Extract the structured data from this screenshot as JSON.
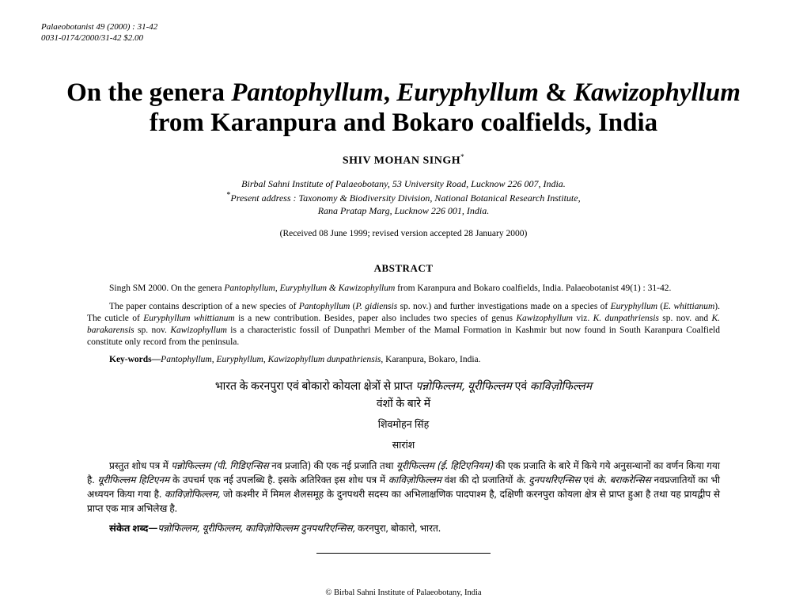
{
  "running_head": {
    "line1": "Palaeobotanist 49 (2000) : 31-42",
    "line2": "0031-0174/2000/31-42 $2.00"
  },
  "title_parts": {
    "a": "On the genera ",
    "b": "Pantophyllum",
    "c": ", ",
    "d": "Euryphyllum",
    "e": " & ",
    "f": "Kawizophyllum",
    "g": " from Karanpura and Bokaro coalfields, India"
  },
  "author": "SHIV MOHAN SINGH",
  "author_marker": "*",
  "affil": {
    "line1": "Birbal Sahni Institute of Palaeobotany, 53 University Road, Lucknow 226 007, India.",
    "line2_pre": "Present address : Taxonomy & Biodiversity Division, National Botanical Research Institute,",
    "line3": "Rana Pratap Marg, Lucknow 226 001, India."
  },
  "dates": "(Received 08 June 1999; revised version accepted 28 January 2000)",
  "abstract_head": "ABSTRACT",
  "abstract": {
    "p1_a": "Singh SM 2000. On the genera ",
    "p1_b": "Pantophyllum, Euryphyllum & Kawizophyllum",
    "p1_c": " from Karanpura and Bokaro coalfields, India. Palaeobotanist 49(1) : 31-42.",
    "p2_a": "The paper contains description of a new species of ",
    "p2_b": "Pantophyllum",
    "p2_c": " (",
    "p2_d": "P. gidiensis",
    "p2_e": " sp. nov.) and further investigations made on a species of ",
    "p2_f": "Euryphyllum",
    "p2_g": " (",
    "p2_h": "E. whittianum",
    "p2_i": "). The cuticle of ",
    "p2_j": "Euryphyllum whittianum",
    "p2_k": " is a new contribution. Besides, paper also includes two species of genus ",
    "p2_l": "Kawizophyllum",
    "p2_m": " viz. ",
    "p2_n": "K. dunpathriensis",
    "p2_o": " sp. nov. and ",
    "p2_p": "K. barakarensis",
    "p2_q": " sp. nov. ",
    "p2_r": "Kawizophyllum",
    "p2_s": " is a characteristic fossil of Dunpathri Member of the Mamal Formation in Kashmir but now found in South Karanpura Coalfield constitute only record from the peninsula."
  },
  "keywords": {
    "label": "Key-words—",
    "it": "Pantophyllum, Euryphyllum, Kawizophyllum dunpathriensis",
    "rest": ", Karanpura, Bokaro, India."
  },
  "hindi": {
    "title_a": "भारत के करनपुरा एवं बोकारो कोयला क्षेत्रों से प्राप्त ",
    "title_b": "पन्नोफिल्लम, यूरीफिल्लम",
    "title_c": " एवं ",
    "title_d": "काविज़ोफिल्लम",
    "title_e": " वंशों के बारे में",
    "author": "शिवमोहन सिंह",
    "section": "सारांश",
    "p1_a": "प्रस्तुत शोध पत्र में ",
    "p1_b": "पन्नोफिल्लम (पी. गिडिएन्सिस",
    "p1_c": " नव प्रजाति) की एक नई प्रजाति तथा ",
    "p1_d": "यूरीफिल्लम (ई. हिटिएनियम)",
    "p1_e": " की एक प्रजाति के बारे में किये गये अनुसन्धानों का वर्णन किया गया है. ",
    "p1_f": "यूरीफिल्लम हिटिएनम",
    "p1_g": " के उपचर्म एक नई उपलब्धि है. इसके अतिरिक्त इस शोध पत्र में ",
    "p1_h": "काविज़ोफिल्लम",
    "p1_i": " वंश की दो प्रजातियों ",
    "p1_j": "के. दुनपथरिएन्सिस",
    "p1_k": " एवं ",
    "p1_l": "के. बराकरेन्सिस",
    "p1_m": " नवप्रजातियों का भी अध्ययन किया गया है. ",
    "p1_n": "काविज़ोफिल्लम,",
    "p1_o": " जो कश्मीर में मिमल शैलसमूह के दुनपथरी सदस्य का अभिलाक्षणिक पादपाश्म है, दक्षिणी करनपुरा कोयला क्षेत्र से प्राप्त हुआ है तथा यह प्रायद्वीप से प्राप्त एक मात्र अभिलेख है.",
    "kw_label": "संकेत शब्द—",
    "kw_it": "पन्नोफिल्लम, यूरीफिल्लम, काविज़ोफिल्लम दुनपथरिएन्सिस,",
    "kw_rest": " करनपुरा, बोकारो, भारत."
  },
  "copyright": "© Birbal Sahni Institute of Palaeobotany, India"
}
